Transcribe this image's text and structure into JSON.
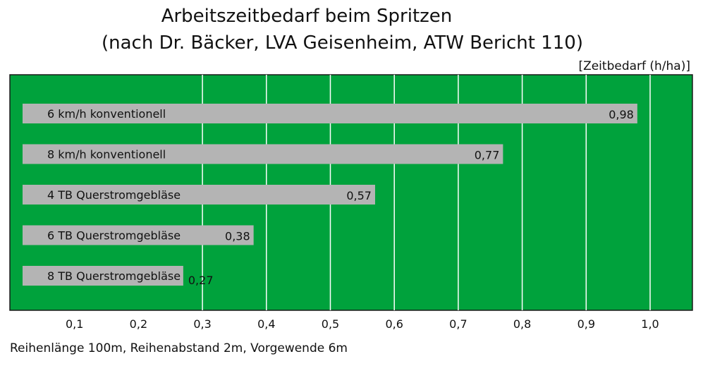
{
  "chart_data": {
    "type": "bar",
    "orientation": "horizontal",
    "title": "Arbeitszeitbedarf beim Spritzen",
    "subtitle": "(nach Dr. Bäcker, LVA Geisenheim, ATW Bericht 110)",
    "unit_label": "[Zeitbedarf (h/ha)]",
    "categories": [
      "6 km/h konventionell",
      "8 km/h konventionell",
      "4 TB Querstromgebläse",
      "6 TB Querstromgebläse",
      "8 TB Querstromgebläse"
    ],
    "values": [
      0.98,
      0.77,
      0.57,
      0.38,
      0.27
    ],
    "value_labels": [
      "0,98",
      "0,77",
      "0,57",
      "0,38",
      "0,27"
    ],
    "xlim": [
      0,
      1.07
    ],
    "xticks": [
      0.1,
      0.2,
      0.3,
      0.4,
      0.5,
      0.6,
      0.7,
      0.8,
      0.9,
      1.0
    ],
    "xtick_labels": [
      "0,1",
      "0,2",
      "0,3",
      "0,4",
      "0,5",
      "0,6",
      "0,7",
      "0,8",
      "0,9",
      "1,0"
    ],
    "grid": true,
    "footnote": "Reihenlänge 100m, Reihenabstand 2m, Vorgewende 6m"
  },
  "colors": {
    "plot_background": "#00A23C",
    "bar": "#B4B4B4",
    "grid": "#FFFFFF",
    "text": "#111111"
  }
}
